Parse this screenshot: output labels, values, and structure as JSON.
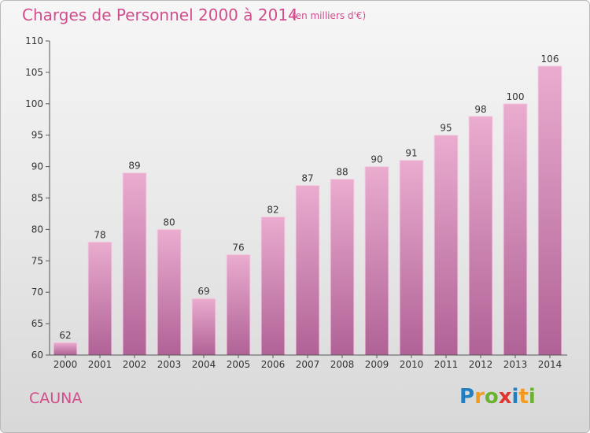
{
  "header": {
    "title": "Charges de Personnel 2000 à 2014",
    "subtitle": "(en milliers d'€)"
  },
  "footer": {
    "city": "CAUNA",
    "logo_text": "Proxiti"
  },
  "colors": {
    "title": "#d14d8c",
    "bar_light": "#e8a8cb",
    "bar_dark": "#b3679a",
    "axis": "#555555"
  },
  "chart_data": {
    "type": "bar",
    "title": "Charges de Personnel 2000 à 2014",
    "subtitle": "(en milliers d'€)",
    "categories": [
      "2000",
      "2001",
      "2002",
      "2003",
      "2004",
      "2005",
      "2006",
      "2007",
      "2008",
      "2009",
      "2010",
      "2011",
      "2012",
      "2013",
      "2014"
    ],
    "values": [
      62,
      78,
      89,
      80,
      69,
      76,
      82,
      87,
      88,
      90,
      91,
      95,
      98,
      100,
      106
    ],
    "ylim": [
      60,
      110
    ],
    "yticks": [
      60,
      65,
      70,
      75,
      80,
      85,
      90,
      95,
      100,
      105,
      110
    ],
    "grid": false,
    "data_labels": true
  }
}
